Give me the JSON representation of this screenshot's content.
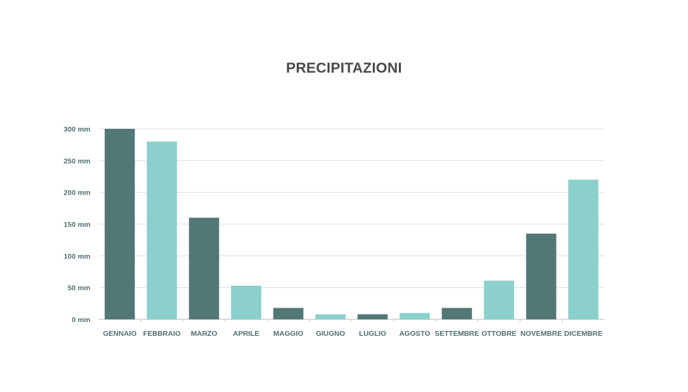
{
  "chart_data": {
    "type": "bar",
    "title": "PRECIPITAZIONI",
    "xlabel": "",
    "ylabel": "",
    "categories": [
      "GENNAIO",
      "FEBBRAIO",
      "MARZO",
      "APRILE",
      "MAGGIO",
      "GIUGNO",
      "LUGLIO",
      "AGOSTO",
      "SETTEMBRE",
      "OTTOBRE",
      "NOVEMBRE",
      "DICEMBRE"
    ],
    "values": [
      300,
      280,
      160,
      53,
      18,
      8,
      8,
      10,
      18,
      61,
      135,
      220
    ],
    "ylim": [
      0,
      300
    ],
    "yticks": [
      0,
      50,
      100,
      150,
      200,
      250,
      300
    ],
    "ytick_labels": [
      "0 mm",
      "50 mm",
      "100 mm",
      "150 mm",
      "200 mm",
      "250 mm",
      "300 mm"
    ],
    "grid": true,
    "legend": "none",
    "colors": [
      "#527876",
      "#8bd0cc"
    ]
  }
}
